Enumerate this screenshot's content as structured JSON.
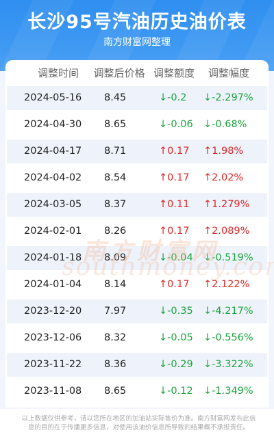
{
  "header": {
    "title": "长沙95号汽油历史油价表",
    "subtitle": "南方财富网整理"
  },
  "columns": [
    "调整时间",
    "调整后价格",
    "调整额度",
    "调整幅度"
  ],
  "rows": [
    {
      "date": "2024-05-16",
      "price": "8.45",
      "delta": "↓-0.2",
      "pct": "↓-2.297%",
      "dir": "down"
    },
    {
      "date": "2024-04-30",
      "price": "8.65",
      "delta": "↓-0.06",
      "pct": "↓-0.68%",
      "dir": "down"
    },
    {
      "date": "2024-04-17",
      "price": "8.71",
      "delta": "↑0.17",
      "pct": "↑1.98%",
      "dir": "up"
    },
    {
      "date": "2024-04-02",
      "price": "8.54",
      "delta": "↑0.17",
      "pct": "↑2.02%",
      "dir": "up"
    },
    {
      "date": "2024-03-05",
      "price": "8.37",
      "delta": "↑0.11",
      "pct": "↑1.279%",
      "dir": "up"
    },
    {
      "date": "2024-02-01",
      "price": "8.26",
      "delta": "↑0.17",
      "pct": "↑2.089%",
      "dir": "up"
    },
    {
      "date": "2024-01-18",
      "price": "8.09",
      "delta": "↓-0.04",
      "pct": "↓-0.519%",
      "dir": "down"
    },
    {
      "date": "2024-01-04",
      "price": "8.14",
      "delta": "↑0.17",
      "pct": "↑2.122%",
      "dir": "up"
    },
    {
      "date": "2023-12-20",
      "price": "7.97",
      "delta": "↓-0.35",
      "pct": "↓-4.217%",
      "dir": "down"
    },
    {
      "date": "2023-12-06",
      "price": "8.32",
      "delta": "↓-0.05",
      "pct": "↓-0.556%",
      "dir": "down"
    },
    {
      "date": "2023-11-22",
      "price": "8.36",
      "delta": "↓-0.29",
      "pct": "↓-3.322%",
      "dir": "down"
    },
    {
      "date": "2023-11-08",
      "price": "8.65",
      "delta": "↓-0.12",
      "pct": "↓-1.349%",
      "dir": "down"
    }
  ],
  "watermark": {
    "cn": "南方财富网",
    "en": "southmoney.com"
  },
  "footer": {
    "disclaimer": "以上数据仅供参考，请以您所在地区的加油站实际售价为准。南方财富网发布此信息的目的在于传播更多信息，对使用该油价信息所导致的结果概不承担责任。"
  },
  "colors": {
    "header_bg": "#3d98f2",
    "down": "#1aa33c",
    "up": "#e02424",
    "row_stripe": "#eef3fb"
  }
}
